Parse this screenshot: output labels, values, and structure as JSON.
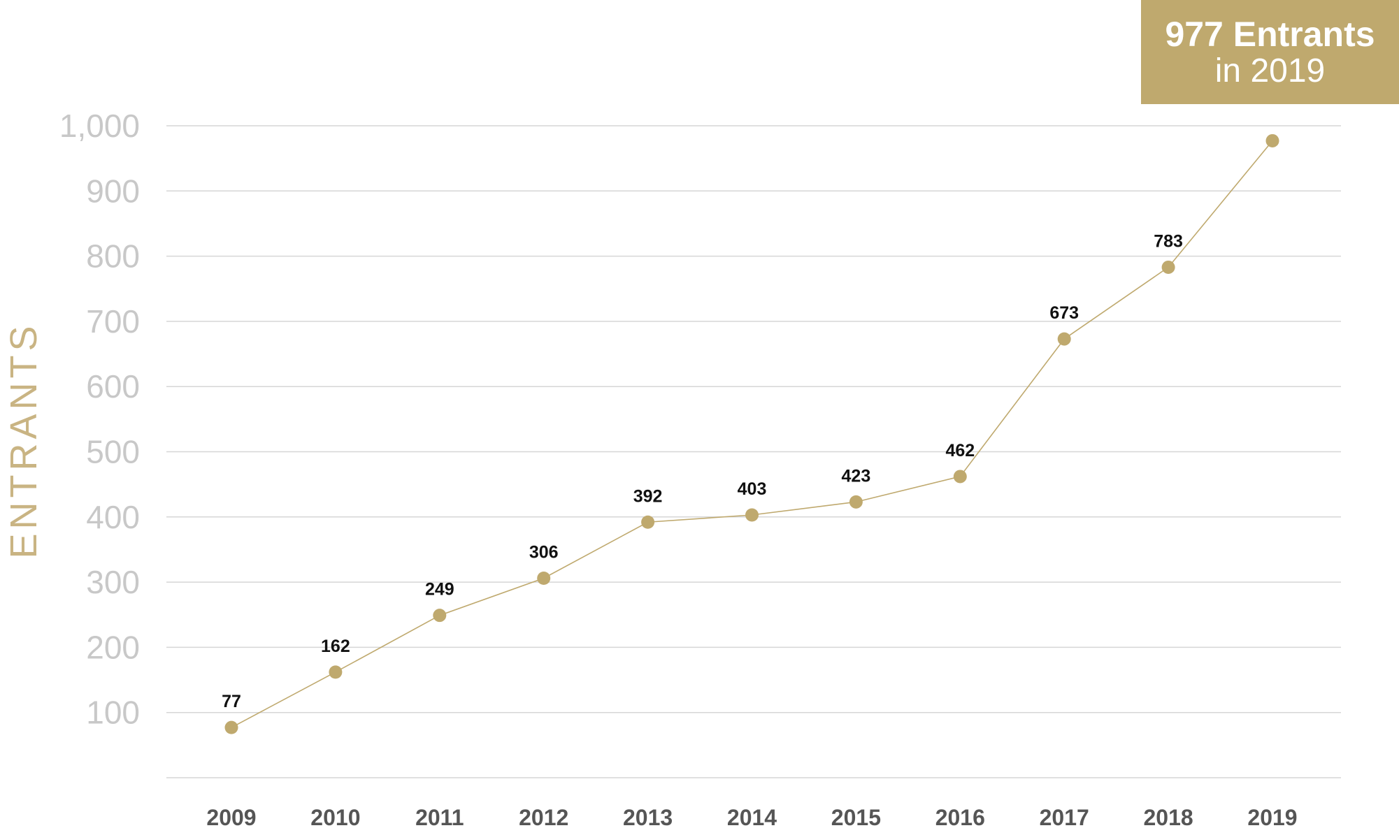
{
  "callout": {
    "headline": "977 Entrants",
    "subline": "in 2019"
  },
  "chart_data": {
    "type": "line",
    "title": "",
    "xlabel": "",
    "ylabel": "ENTRANTS",
    "categories": [
      "2009",
      "2010",
      "2011",
      "2012",
      "2013",
      "2014",
      "2015",
      "2016",
      "2017",
      "2018",
      "2019"
    ],
    "values": [
      77,
      162,
      249,
      306,
      392,
      403,
      423,
      462,
      673,
      783,
      977
    ],
    "data_labels": [
      "77",
      "162",
      "249",
      "306",
      "392",
      "403",
      "423",
      "462",
      "673",
      "783",
      ""
    ],
    "y_ticks": [
      100,
      200,
      300,
      400,
      500,
      600,
      700,
      800,
      900,
      1000
    ],
    "y_tick_labels": [
      "100",
      "200",
      "300",
      "400",
      "500",
      "600",
      "700",
      "800",
      "900",
      "1,000"
    ],
    "ylim": [
      0,
      1000
    ],
    "grid": true,
    "colors": {
      "series": "#bfa96e",
      "grid": "#d6d6d6",
      "tick_label": "#c8c8c8",
      "category_label": "#555555",
      "data_label": "#111111",
      "ylabel": "#c9b483"
    }
  }
}
